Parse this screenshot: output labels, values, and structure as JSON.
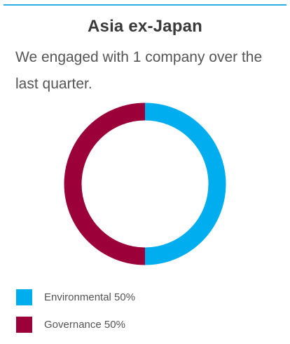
{
  "header": {
    "title": "Asia ex-Japan",
    "description": "We engaged with 1 company over the last quarter."
  },
  "colors": {
    "rule": "#2ab0e6",
    "environmental": "#00aeef",
    "governance": "#9b0038"
  },
  "chart_data": {
    "type": "pie",
    "variant": "donut",
    "title": "Asia ex-Japan",
    "categories": [
      "Environmental",
      "Governance"
    ],
    "values": [
      50,
      50
    ],
    "legend_labels": [
      "Environmental 50%",
      "Governance 50%"
    ],
    "legend_position": "bottom-left"
  }
}
